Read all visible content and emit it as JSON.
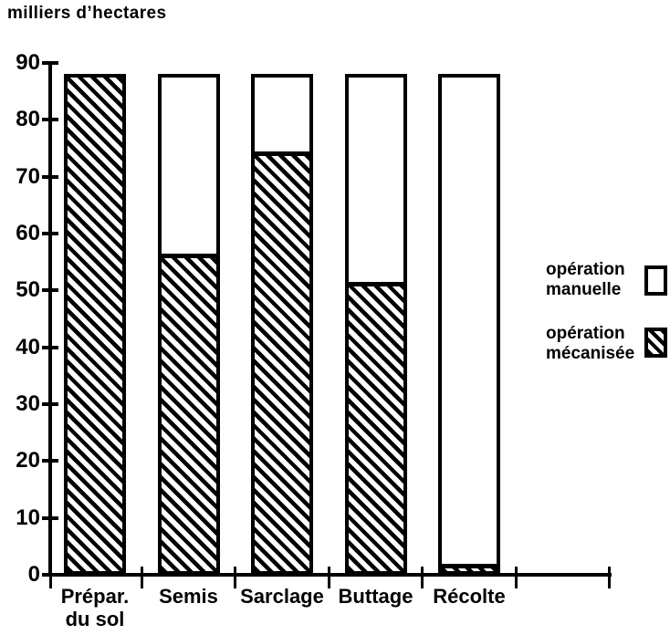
{
  "title": "milliers d’hectares",
  "legend": {
    "items": [
      {
        "line1": "opération",
        "line2": "manuelle",
        "fill": "white"
      },
      {
        "line1": "opération",
        "line2": "mécanisée",
        "fill": "hatch"
      }
    ]
  },
  "colors": {
    "ink": "#000000",
    "paper": "#ffffff"
  },
  "chart_data": {
    "type": "bar",
    "stacked": true,
    "title": "milliers d’hectares",
    "ylabel": "milliers d’hectares",
    "xlabel": "",
    "ylim": [
      0,
      90
    ],
    "y_ticks": [
      0,
      10,
      20,
      30,
      40,
      50,
      60,
      70,
      80,
      90
    ],
    "grid": false,
    "legend_position": "right",
    "categories": [
      [
        "Prépar.",
        "du sol"
      ],
      [
        "Semis"
      ],
      [
        "Sarclage"
      ],
      [
        "Buttage"
      ],
      [
        "Récolte"
      ]
    ],
    "series": [
      {
        "name": "opération mécanisée",
        "pattern": "hatch",
        "values": [
          88,
          55,
          73,
          50,
          0.5
        ]
      },
      {
        "name": "opération manuelle",
        "pattern": "white",
        "values": [
          0,
          33,
          15,
          38,
          87.5
        ]
      }
    ],
    "bar_totals": [
      88,
      88,
      88,
      88,
      88
    ]
  }
}
